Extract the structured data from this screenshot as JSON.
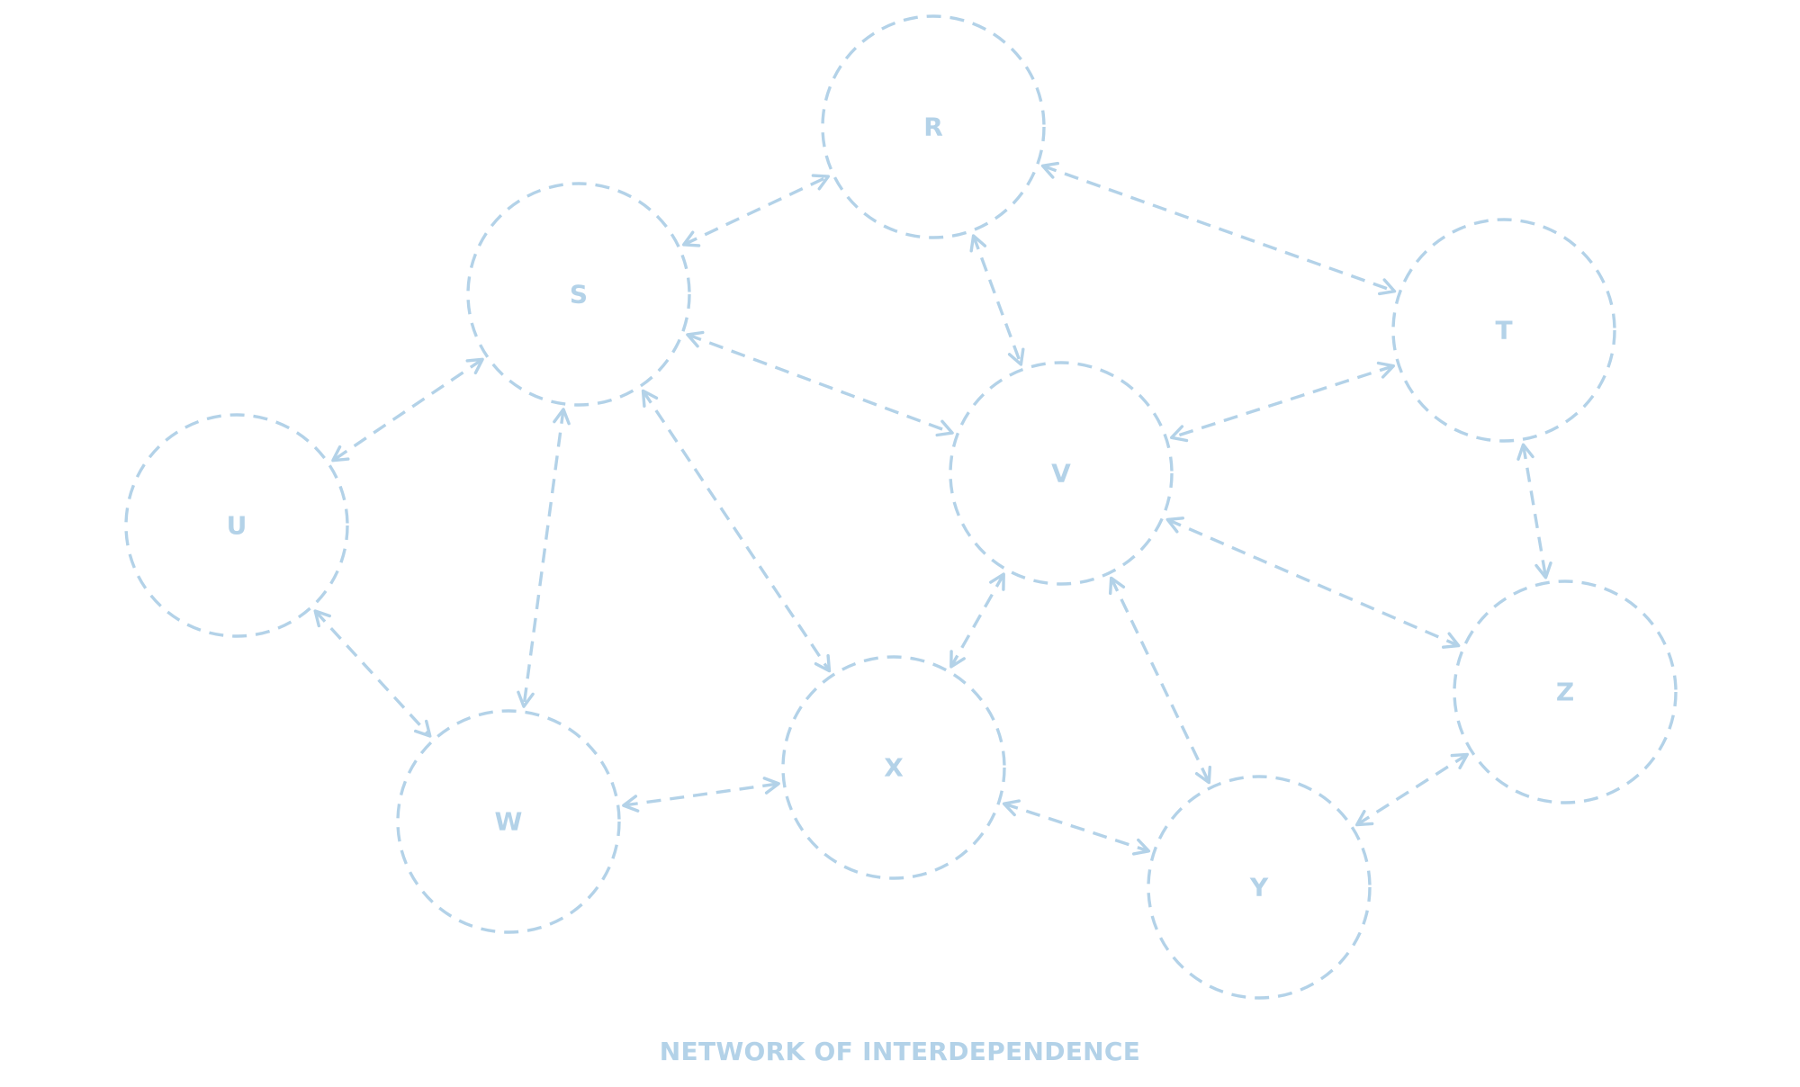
{
  "colors": {
    "stroke": "#b3d2e8"
  },
  "caption": "NETWORK OF INTERDEPENDENCE",
  "nodes": [
    {
      "id": "R",
      "label": "R"
    },
    {
      "id": "S",
      "label": "S"
    },
    {
      "id": "T",
      "label": "T"
    },
    {
      "id": "U",
      "label": "U"
    },
    {
      "id": "V",
      "label": "V"
    },
    {
      "id": "W",
      "label": "W"
    },
    {
      "id": "X",
      "label": "X"
    },
    {
      "id": "Y",
      "label": "Y"
    },
    {
      "id": "Z",
      "label": "Z"
    }
  ],
  "edges": [
    {
      "from": "S",
      "to": "R",
      "bidirectional": true
    },
    {
      "from": "R",
      "to": "T",
      "bidirectional": true
    },
    {
      "from": "R",
      "to": "V",
      "bidirectional": true
    },
    {
      "from": "S",
      "to": "V",
      "bidirectional": true
    },
    {
      "from": "S",
      "to": "U",
      "bidirectional": true
    },
    {
      "from": "S",
      "to": "W",
      "bidirectional": true
    },
    {
      "from": "S",
      "to": "X",
      "bidirectional": true
    },
    {
      "from": "T",
      "to": "V",
      "bidirectional": true
    },
    {
      "from": "T",
      "to": "Z",
      "bidirectional": true
    },
    {
      "from": "U",
      "to": "W",
      "bidirectional": true
    },
    {
      "from": "V",
      "to": "X",
      "bidirectional": true
    },
    {
      "from": "V",
      "to": "Y",
      "bidirectional": true
    },
    {
      "from": "V",
      "to": "Z",
      "bidirectional": true
    },
    {
      "from": "W",
      "to": "X",
      "bidirectional": true
    },
    {
      "from": "X",
      "to": "Y",
      "bidirectional": true
    },
    {
      "from": "Y",
      "to": "Z",
      "bidirectional": true
    }
  ]
}
